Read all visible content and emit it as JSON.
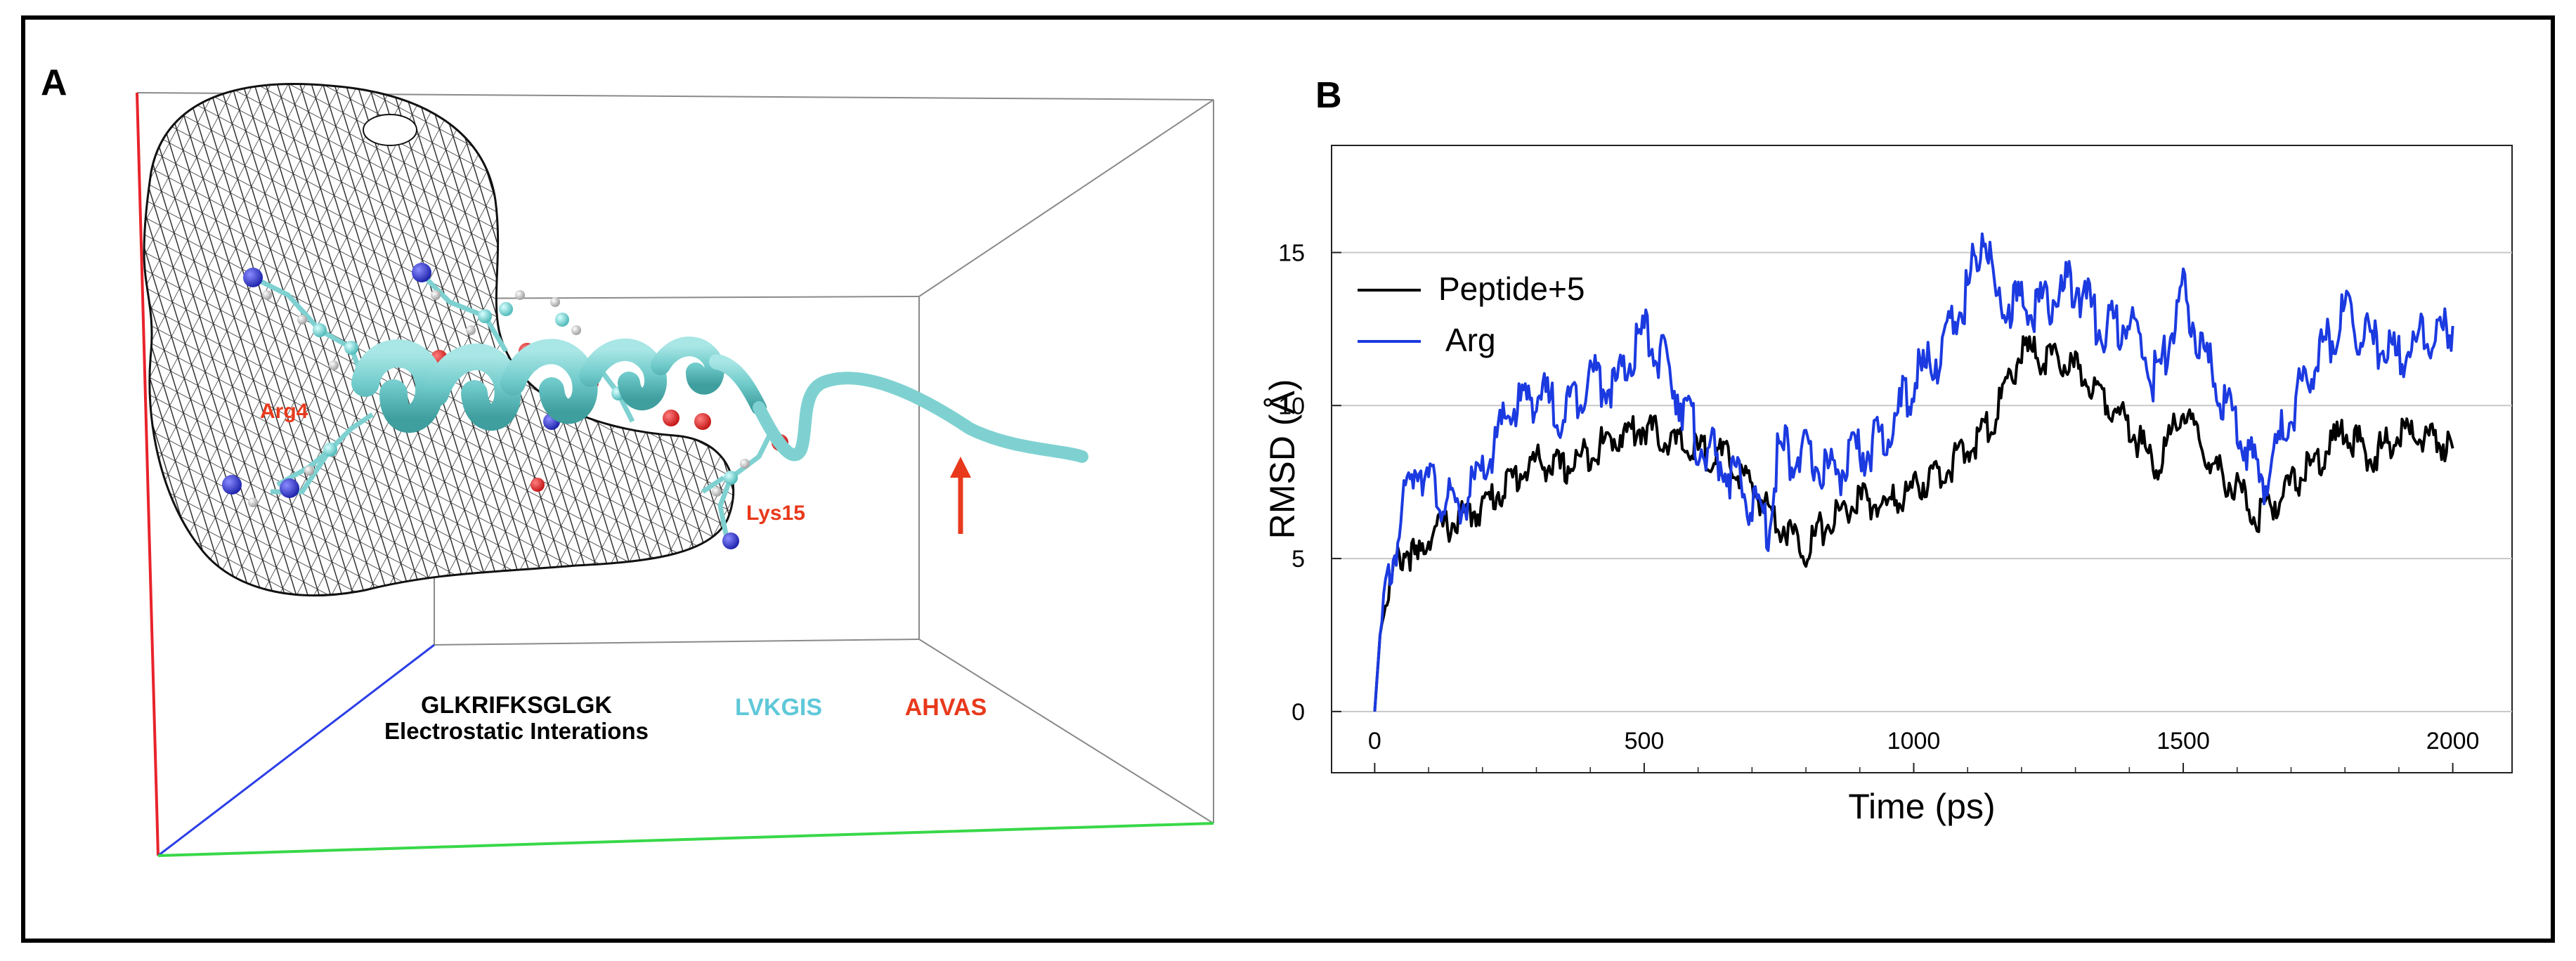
{
  "figure": {
    "panel_a": {
      "label": "A",
      "residue_labels": {
        "arg": "Arg4",
        "lys": "Lys15"
      },
      "sequence": {
        "seg1": "GLKRIFKSGLGK",
        "seg1_caption": "Electrostatic Interations",
        "seg2": "LVKGIS",
        "seg3": "AHVAS"
      },
      "colors": {
        "helix": "#7fd1d1",
        "label_red": "#e8391c",
        "seq_cyan": "#5fc8d8",
        "mesh": "#222222"
      }
    },
    "panel_b": {
      "label": "B"
    }
  },
  "chart_data": {
    "type": "line",
    "xlabel": "Time (ps)",
    "ylabel": "RMSD (Å)",
    "xlim": [
      -80,
      2110
    ],
    "ylim": [
      -2,
      18.5
    ],
    "xticks": [
      0,
      500,
      1000,
      1500,
      2000
    ],
    "yticks": [
      0,
      5,
      10,
      15
    ],
    "grid": "horizontal",
    "legend_position": "top-left",
    "series": [
      {
        "name": "Peptide+5",
        "color": "#000000",
        "x": [
          0,
          10,
          20,
          40,
          60,
          80,
          100,
          150,
          200,
          250,
          300,
          350,
          400,
          450,
          500,
          550,
          600,
          650,
          700,
          750,
          800,
          820,
          850,
          900,
          950,
          1000,
          1050,
          1100,
          1150,
          1200,
          1250,
          1300,
          1350,
          1400,
          1450,
          1500,
          1550,
          1600,
          1640,
          1700,
          1750,
          1800,
          1850,
          1900,
          1950,
          2000
        ],
        "y": [
          0,
          2.5,
          3.6,
          4.8,
          5.3,
          4.9,
          5.8,
          6.2,
          6.7,
          7.5,
          8.2,
          7.9,
          8.5,
          9.0,
          9.3,
          8.8,
          8.5,
          8.3,
          7.3,
          6.2,
          5.3,
          5.8,
          6.3,
          6.9,
          6.7,
          7.3,
          7.8,
          8.5,
          9.6,
          11.8,
          11.5,
          11.2,
          10.4,
          9.3,
          8.0,
          9.8,
          8.1,
          7.3,
          6.3,
          7.4,
          8.2,
          9.2,
          8.3,
          9.1,
          9.0,
          8.6
        ]
      },
      {
        "name": "Arg",
        "color": "#1b3ae0",
        "x": [
          0,
          10,
          20,
          40,
          60,
          80,
          100,
          150,
          200,
          250,
          300,
          350,
          400,
          450,
          500,
          550,
          600,
          650,
          700,
          730,
          750,
          800,
          850,
          900,
          950,
          1000,
          1050,
          1100,
          1130,
          1150,
          1200,
          1250,
          1300,
          1350,
          1400,
          1450,
          1500,
          1550,
          1600,
          1650,
          1700,
          1750,
          1800,
          1850,
          1900,
          1950,
          2000
        ],
        "y": [
          0,
          2.5,
          3.8,
          5.5,
          7.2,
          8.3,
          7.5,
          6.5,
          7.7,
          9.8,
          10.4,
          9.7,
          11.0,
          10.6,
          12.4,
          11.0,
          8.8,
          8.0,
          6.8,
          6.0,
          8.6,
          8.3,
          7.8,
          8.4,
          9.0,
          10.8,
          11.7,
          13.7,
          16.0,
          13.6,
          13.2,
          13.4,
          14.0,
          12.5,
          12.8,
          10.8,
          13.6,
          11.2,
          9.2,
          7.6,
          9.8,
          11.6,
          12.9,
          12.0,
          11.6,
          12.2,
          12.6
        ]
      }
    ]
  }
}
